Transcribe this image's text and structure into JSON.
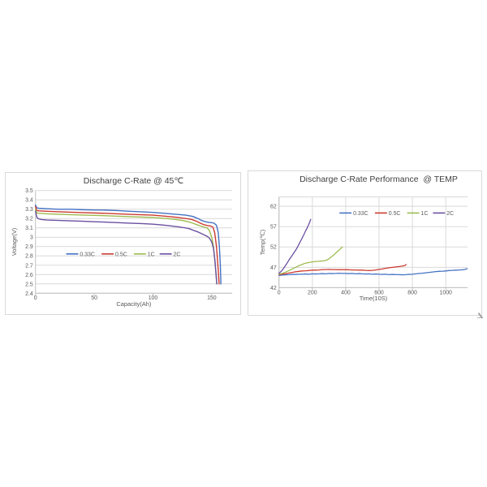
{
  "colors": {
    "grid": "#d9d9d9",
    "axis": "#bfbfbf",
    "tick_text": "#595959",
    "title_text": "#404040",
    "series_blue": "#4472C4",
    "series_red": "#CC3B30",
    "series_green": "#9CBB4E",
    "series_purple": "#6A4FA1"
  },
  "chart_data": [
    {
      "type": "line",
      "title": "Discharge C-Rate @ 45℃",
      "xlabel": "Capacity(Ah)",
      "ylabel": "Voltage(V)",
      "xlim": [
        0,
        167.4
      ],
      "ylim": [
        2.4,
        3.5
      ],
      "xticks": [
        "0",
        "50",
        "100",
        "150"
      ],
      "yticks": [
        "2.4",
        "2.5",
        "2.6",
        "2.7",
        "2.8",
        "2.9",
        "3",
        "3.1",
        "3.2",
        "3.3",
        "3.4",
        "3.5"
      ],
      "grid": {
        "x": false,
        "y": true,
        "top_border": false
      },
      "legend_position": "inside-middle",
      "series": [
        {
          "name": "0.33C",
          "color": "#4472C4",
          "points": [
            [
              0,
              3.345
            ],
            [
              1,
              3.315
            ],
            [
              3,
              3.31
            ],
            [
              10,
              3.305
            ],
            [
              20,
              3.3
            ],
            [
              30,
              3.3
            ],
            [
              40,
              3.295
            ],
            [
              50,
              3.292
            ],
            [
              60,
              3.29
            ],
            [
              70,
              3.285
            ],
            [
              80,
              3.278
            ],
            [
              90,
              3.272
            ],
            [
              100,
              3.265
            ],
            [
              110,
              3.256
            ],
            [
              120,
              3.246
            ],
            [
              128,
              3.236
            ],
            [
              134,
              3.222
            ],
            [
              138,
              3.202
            ],
            [
              141,
              3.182
            ],
            [
              144,
              3.168
            ],
            [
              147,
              3.16
            ],
            [
              150,
              3.156
            ],
            [
              152,
              3.15
            ],
            [
              154,
              3.128
            ],
            [
              155.5,
              3.05
            ],
            [
              156.5,
              2.9
            ],
            [
              157.3,
              2.7
            ],
            [
              157.8,
              2.5
            ]
          ]
        },
        {
          "name": "0.5C",
          "color": "#CC3B30",
          "points": [
            [
              0,
              3.33
            ],
            [
              1,
              3.287
            ],
            [
              3,
              3.282
            ],
            [
              10,
              3.277
            ],
            [
              20,
              3.272
            ],
            [
              40,
              3.264
            ],
            [
              60,
              3.256
            ],
            [
              80,
              3.246
            ],
            [
              100,
              3.236
            ],
            [
              110,
              3.226
            ],
            [
              120,
              3.214
            ],
            [
              128,
              3.2
            ],
            [
              133,
              3.19
            ],
            [
              137,
              3.172
            ],
            [
              140,
              3.152
            ],
            [
              143,
              3.136
            ],
            [
              146,
              3.126
            ],
            [
              149,
              3.12
            ],
            [
              151,
              3.108
            ],
            [
              152.5,
              3.05
            ],
            [
              154,
              2.9
            ],
            [
              155.5,
              2.65
            ],
            [
              156.3,
              2.5
            ]
          ]
        },
        {
          "name": "1C",
          "color": "#9CBB4E",
          "points": [
            [
              0,
              3.3
            ],
            [
              1,
              3.26
            ],
            [
              3,
              3.256
            ],
            [
              10,
              3.251
            ],
            [
              20,
              3.246
            ],
            [
              40,
              3.238
            ],
            [
              60,
              3.23
            ],
            [
              80,
              3.221
            ],
            [
              100,
              3.211
            ],
            [
              110,
              3.202
            ],
            [
              118,
              3.192
            ],
            [
              125,
              3.18
            ],
            [
              130,
              3.166
            ],
            [
              134,
              3.15
            ],
            [
              137,
              3.136
            ],
            [
              140,
              3.122
            ],
            [
              143,
              3.11
            ],
            [
              146,
              3.1
            ],
            [
              148,
              3.072
            ],
            [
              150,
              3.0
            ],
            [
              151.5,
              2.9
            ],
            [
              153,
              2.7
            ],
            [
              154.3,
              2.5
            ]
          ]
        },
        {
          "name": "2C",
          "color": "#6A4FA1",
          "points": [
            [
              0,
              3.28
            ],
            [
              1,
              3.22
            ],
            [
              2,
              3.2
            ],
            [
              5,
              3.19
            ],
            [
              10,
              3.185
            ],
            [
              20,
              3.18
            ],
            [
              30,
              3.176
            ],
            [
              40,
              3.171
            ],
            [
              50,
              3.166
            ],
            [
              60,
              3.161
            ],
            [
              70,
              3.156
            ],
            [
              80,
              3.151
            ],
            [
              90,
              3.146
            ],
            [
              100,
              3.14
            ],
            [
              108,
              3.131
            ],
            [
              115,
              3.121
            ],
            [
              122,
              3.111
            ],
            [
              127,
              3.101
            ],
            [
              131,
              3.091
            ],
            [
              135,
              3.071
            ],
            [
              138,
              3.058
            ],
            [
              141,
              3.04
            ],
            [
              144,
              3.022
            ],
            [
              146,
              3.01
            ],
            [
              148,
              2.99
            ],
            [
              150,
              2.95
            ],
            [
              151.5,
              2.88
            ],
            [
              152.7,
              2.75
            ],
            [
              153.7,
              2.6
            ],
            [
              154.3,
              2.5
            ]
          ]
        }
      ]
    },
    {
      "type": "line",
      "title": "Discharge C-Rate Performance  @ TEMP",
      "xlabel": "Time(10S)",
      "ylabel": "Temp(℃)",
      "xlim": [
        0,
        1131
      ],
      "ylim": [
        42,
        64.3
      ],
      "xticks": [
        "0",
        "200",
        "400",
        "600",
        "800",
        "1000"
      ],
      "yticks": [
        "42",
        "47",
        "52",
        "57",
        "62"
      ],
      "grid": {
        "x": true,
        "y": true,
        "top_border": true
      },
      "legend_position": "inside-top",
      "series": [
        {
          "name": "0.33C",
          "color": "#4472C4",
          "points": [
            [
              0,
              45.0
            ],
            [
              20,
              45.1
            ],
            [
              40,
              45.15
            ],
            [
              60,
              45.2
            ],
            [
              80,
              45.25
            ],
            [
              100,
              45.25
            ],
            [
              120,
              45.3
            ],
            [
              140,
              45.3
            ],
            [
              160,
              45.35
            ],
            [
              180,
              45.3
            ],
            [
              200,
              45.4
            ],
            [
              220,
              45.35
            ],
            [
              240,
              45.4
            ],
            [
              260,
              45.45
            ],
            [
              280,
              45.4
            ],
            [
              300,
              45.5
            ],
            [
              320,
              45.45
            ],
            [
              340,
              45.5
            ],
            [
              360,
              45.55
            ],
            [
              380,
              45.5
            ],
            [
              400,
              45.5
            ],
            [
              420,
              45.45
            ],
            [
              440,
              45.5
            ],
            [
              460,
              45.4
            ],
            [
              480,
              45.45
            ],
            [
              500,
              45.4
            ],
            [
              520,
              45.35
            ],
            [
              540,
              45.4
            ],
            [
              560,
              45.3
            ],
            [
              580,
              45.35
            ],
            [
              600,
              45.3
            ],
            [
              620,
              45.25
            ],
            [
              640,
              45.3
            ],
            [
              660,
              45.2
            ],
            [
              680,
              45.25
            ],
            [
              700,
              45.2
            ],
            [
              720,
              45.2
            ],
            [
              740,
              45.15
            ],
            [
              760,
              45.2
            ],
            [
              780,
              45.25
            ],
            [
              800,
              45.3
            ],
            [
              820,
              45.4
            ],
            [
              840,
              45.5
            ],
            [
              860,
              45.55
            ],
            [
              880,
              45.65
            ],
            [
              900,
              45.75
            ],
            [
              920,
              45.85
            ],
            [
              940,
              45.95
            ],
            [
              960,
              46.0
            ],
            [
              980,
              46.05
            ],
            [
              1000,
              46.1
            ],
            [
              1020,
              46.2
            ],
            [
              1040,
              46.25
            ],
            [
              1060,
              46.3
            ],
            [
              1080,
              46.35
            ],
            [
              1100,
              46.4
            ],
            [
              1115,
              46.5
            ],
            [
              1128,
              46.65
            ]
          ]
        },
        {
          "name": "0.5C",
          "color": "#CC3B30",
          "points": [
            [
              0,
              45.2
            ],
            [
              20,
              45.3
            ],
            [
              40,
              45.45
            ],
            [
              60,
              45.6
            ],
            [
              80,
              45.75
            ],
            [
              100,
              45.9
            ],
            [
              120,
              46.0
            ],
            [
              140,
              46.1
            ],
            [
              160,
              46.15
            ],
            [
              180,
              46.2
            ],
            [
              200,
              46.3
            ],
            [
              220,
              46.3
            ],
            [
              240,
              46.35
            ],
            [
              260,
              46.45
            ],
            [
              280,
              46.45
            ],
            [
              300,
              46.5
            ],
            [
              320,
              46.45
            ],
            [
              340,
              46.45
            ],
            [
              360,
              46.4
            ],
            [
              380,
              46.45
            ],
            [
              400,
              46.4
            ],
            [
              420,
              46.4
            ],
            [
              440,
              46.35
            ],
            [
              460,
              46.35
            ],
            [
              480,
              46.3
            ],
            [
              500,
              46.3
            ],
            [
              520,
              46.25
            ],
            [
              540,
              46.2
            ],
            [
              560,
              46.25
            ],
            [
              580,
              46.35
            ],
            [
              600,
              46.5
            ],
            [
              620,
              46.6
            ],
            [
              640,
              46.75
            ],
            [
              660,
              46.9
            ],
            [
              680,
              47.0
            ],
            [
              700,
              47.1
            ],
            [
              720,
              47.2
            ],
            [
              740,
              47.3
            ],
            [
              755,
              47.4
            ],
            [
              762,
              47.7
            ]
          ]
        },
        {
          "name": "1C",
          "color": "#9CBB4E",
          "points": [
            [
              0,
              45.3
            ],
            [
              15,
              45.45
            ],
            [
              30,
              45.65
            ],
            [
              45,
              45.9
            ],
            [
              60,
              46.2
            ],
            [
              75,
              46.5
            ],
            [
              90,
              46.8
            ],
            [
              105,
              47.1
            ],
            [
              120,
              47.4
            ],
            [
              135,
              47.65
            ],
            [
              150,
              47.9
            ],
            [
              165,
              48.05
            ],
            [
              180,
              48.2
            ],
            [
              195,
              48.3
            ],
            [
              210,
              48.4
            ],
            [
              225,
              48.45
            ],
            [
              240,
              48.5
            ],
            [
              255,
              48.55
            ],
            [
              270,
              48.6
            ],
            [
              285,
              48.75
            ],
            [
              300,
              49.1
            ],
            [
              315,
              49.6
            ],
            [
              330,
              50.1
            ],
            [
              345,
              50.7
            ],
            [
              360,
              51.2
            ],
            [
              370,
              51.6
            ],
            [
              380,
              52.0
            ]
          ]
        },
        {
          "name": "2C",
          "color": "#6A4FA1",
          "points": [
            [
              0,
              45.5
            ],
            [
              10,
              45.9
            ],
            [
              20,
              46.3
            ],
            [
              30,
              46.9
            ],
            [
              40,
              47.5
            ],
            [
              50,
              48.1
            ],
            [
              60,
              48.8
            ],
            [
              70,
              49.4
            ],
            [
              80,
              50.0
            ],
            [
              90,
              50.6
            ],
            [
              100,
              51.2
            ],
            [
              110,
              51.9
            ],
            [
              120,
              52.7
            ],
            [
              130,
              53.5
            ],
            [
              140,
              54.3
            ],
            [
              150,
              55.1
            ],
            [
              160,
              56.0
            ],
            [
              170,
              56.8
            ],
            [
              178,
              57.5
            ],
            [
              185,
              58.2
            ],
            [
              190,
              58.8
            ]
          ]
        }
      ]
    }
  ]
}
